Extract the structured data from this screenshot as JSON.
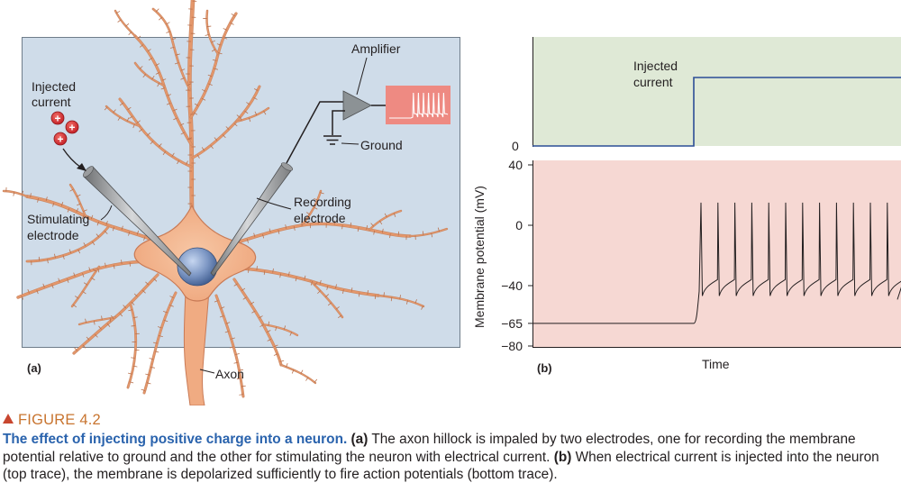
{
  "panel_a": {
    "label": "(a)",
    "injected_current_label": [
      "Injected",
      "current"
    ],
    "stimulating_electrode_label": [
      "Stimulating",
      "electrode"
    ],
    "recording_electrode_label": [
      "Recording",
      "electrode"
    ],
    "amplifier_label": "Amplifier",
    "ground_label": "Ground",
    "axon_label": "Axon",
    "charge_symbol": "+",
    "colors": {
      "panel_bg": "#cfdce9",
      "neuron": "#f2b189",
      "neuron_outline": "#c97a55",
      "nucleus": "#7d97c4",
      "amplifier": "#8c9295",
      "monitor": "#ee8a82"
    }
  },
  "panel_b": {
    "label": "(b)",
    "top_trace": {
      "label": [
        "Injected",
        "current"
      ],
      "zero_label": "0",
      "bg": "#dfe9d6",
      "line_color": "#2c4e96"
    },
    "bottom_trace": {
      "ylabel": "Membrane potential (mV)",
      "yticks": [
        "40",
        "0",
        "−40",
        "−65",
        "−80"
      ],
      "xlabel": "Time",
      "bg": "#f6d8d3"
    }
  },
  "chart_data": {
    "type": "line",
    "xlabel": "Time",
    "ylabel": "Membrane potential (mV)",
    "ylim": [
      -80,
      40
    ],
    "series": [
      {
        "name": "Injected current",
        "values_description_free": true,
        "steps": [
          {
            "state": "off",
            "level": 0
          },
          {
            "state": "on",
            "level": 1
          }
        ]
      },
      {
        "name": "Membrane potential",
        "resting_mV": -65,
        "spike_peak_mV": 15,
        "afterhyperpolarization_mV": -42,
        "spike_count": 12
      }
    ]
  },
  "caption": {
    "figure_label": "FIGURE 4.2",
    "title": "The effect of injecting positive charge into a neuron.",
    "part_a_marker": "(a)",
    "part_a_text": "The axon hillock is impaled by two electrodes, one for recording the membrane potential relative to ground and the other for stimulating the neuron with electrical current.",
    "part_b_marker": "(b)",
    "part_b_text": "When electrical current is injected into the neuron (top trace), the membrane is depolarized sufficiently to fire action potentials (bottom trace)."
  }
}
